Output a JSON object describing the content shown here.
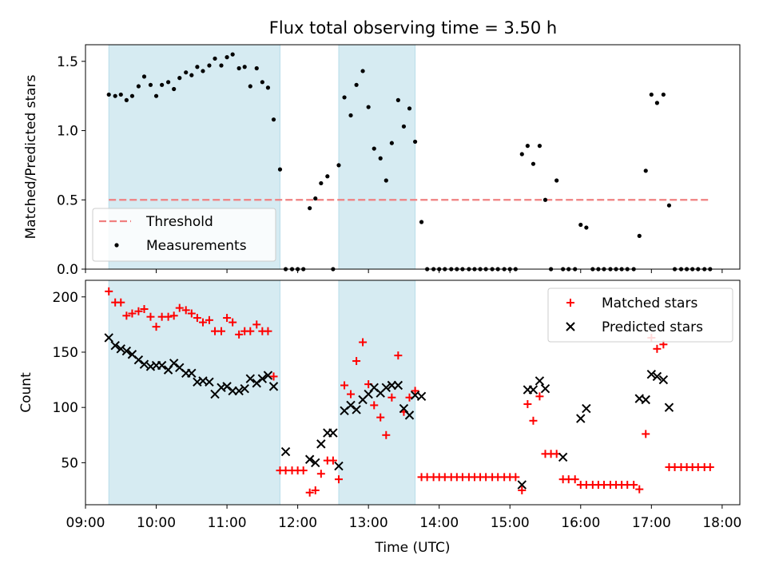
{
  "figure": {
    "title": "Flux total observing time = 3.50 h"
  },
  "chart_data": [
    {
      "type": "scatter",
      "ylabel": "Matched/Predicted stars",
      "xlim": [
        9.0,
        18.25
      ],
      "ylim": [
        0,
        1.62
      ],
      "yticks": [
        0.0,
        0.5,
        1.0,
        1.5
      ],
      "ytick_labels": [
        "0.0",
        "0.5",
        "1.0",
        "1.5"
      ],
      "xticks": [
        9,
        10,
        11,
        12,
        13,
        14,
        15,
        16,
        17,
        18
      ],
      "shaded_intervals": [
        [
          9.33,
          11.75
        ],
        [
          12.58,
          13.66
        ]
      ],
      "shade_color": "#add8e6",
      "threshold": {
        "name": "Threshold",
        "value": 0.5,
        "x_range": [
          9.33,
          17.83
        ],
        "color": "#f08080"
      },
      "legend": {
        "position": "lower-left",
        "entries": [
          "Threshold",
          "Measurements"
        ]
      },
      "series": [
        {
          "name": "Measurements",
          "color": "#000000",
          "x": [
            9.33,
            9.42,
            9.5,
            9.58,
            9.66,
            9.75,
            9.83,
            9.92,
            10.0,
            10.08,
            10.17,
            10.25,
            10.33,
            10.42,
            10.5,
            10.58,
            10.66,
            10.75,
            10.83,
            10.92,
            11.0,
            11.08,
            11.17,
            11.25,
            11.33,
            11.42,
            11.5,
            11.58,
            11.66,
            11.75,
            11.83,
            11.92,
            12.0,
            12.08,
            12.17,
            12.25,
            12.33,
            12.42,
            12.5,
            12.58,
            12.66,
            12.75,
            12.83,
            12.92,
            13.0,
            13.08,
            13.17,
            13.25,
            13.33,
            13.42,
            13.5,
            13.58,
            13.66,
            13.75,
            13.83,
            13.92,
            14.0,
            14.08,
            14.17,
            14.25,
            14.33,
            14.42,
            14.5,
            14.58,
            14.66,
            14.75,
            14.83,
            14.92,
            15.0,
            15.08,
            15.17,
            15.25,
            15.33,
            15.42,
            15.5,
            15.58,
            15.66,
            15.75,
            15.83,
            15.92,
            16.0,
            16.08,
            16.17,
            16.25,
            16.33,
            16.42,
            16.5,
            16.58,
            16.66,
            16.75,
            16.83,
            16.92,
            17.0,
            17.08,
            17.17,
            17.25,
            17.33,
            17.42,
            17.5,
            17.58,
            17.66,
            17.75,
            17.83
          ],
          "y": [
            1.26,
            1.25,
            1.26,
            1.22,
            1.25,
            1.32,
            1.39,
            1.33,
            1.25,
            1.33,
            1.35,
            1.3,
            1.38,
            1.42,
            1.4,
            1.46,
            1.43,
            1.47,
            1.52,
            1.47,
            1.53,
            1.55,
            1.45,
            1.46,
            1.32,
            1.45,
            1.35,
            1.31,
            1.08,
            0.72,
            0.0,
            0.0,
            0.0,
            0.0,
            0.44,
            0.51,
            0.62,
            0.67,
            0.0,
            0.75,
            1.24,
            1.11,
            1.33,
            1.43,
            1.17,
            0.87,
            0.8,
            0.64,
            0.91,
            1.22,
            1.03,
            1.16,
            0.92,
            0.34,
            0.0,
            0.0,
            0.0,
            0.0,
            0.0,
            0.0,
            0.0,
            0.0,
            0.0,
            0.0,
            0.0,
            0.0,
            0.0,
            0.0,
            0.0,
            0.0,
            0.83,
            0.89,
            0.76,
            0.89,
            0.5,
            0.0,
            0.64,
            0.0,
            0.0,
            0.0,
            0.32,
            0.3,
            0.0,
            0.0,
            0.0,
            0.0,
            0.0,
            0.0,
            0.0,
            0.0,
            0.24,
            0.71,
            1.26,
            1.2,
            1.26,
            0.46,
            0.0,
            0.0,
            0.0,
            0.0,
            0.0,
            0.0,
            0.0
          ]
        }
      ]
    },
    {
      "type": "scatter",
      "xlabel": "Time (UTC)",
      "ylabel": "Count",
      "xlim": [
        9.0,
        18.25
      ],
      "ylim": [
        12,
        215
      ],
      "yticks": [
        50,
        100,
        150,
        200
      ],
      "ytick_labels": [
        "50",
        "100",
        "150",
        "200"
      ],
      "xticks": [
        9,
        10,
        11,
        12,
        13,
        14,
        15,
        16,
        17,
        18
      ],
      "xtick_labels": [
        "09:00",
        "10:00",
        "11:00",
        "12:00",
        "13:00",
        "14:00",
        "15:00",
        "16:00",
        "17:00",
        "18:00"
      ],
      "shaded_intervals": [
        [
          9.33,
          11.75
        ],
        [
          12.58,
          13.66
        ]
      ],
      "shade_color": "#add8e6",
      "legend": {
        "position": "top-right",
        "entries": [
          "Matched stars",
          "Predicted stars"
        ]
      },
      "series": [
        {
          "name": "Matched stars",
          "marker": "plus",
          "color": "#ff0000",
          "x": [
            9.33,
            9.42,
            9.5,
            9.58,
            9.66,
            9.75,
            9.83,
            9.92,
            10.0,
            10.08,
            10.17,
            10.25,
            10.33,
            10.42,
            10.5,
            10.58,
            10.66,
            10.75,
            10.83,
            10.92,
            11.0,
            11.08,
            11.17,
            11.25,
            11.33,
            11.42,
            11.5,
            11.58,
            11.66,
            11.75,
            11.83,
            11.92,
            12.0,
            12.08,
            12.17,
            12.25,
            12.33,
            12.42,
            12.5,
            12.58,
            12.66,
            12.75,
            12.83,
            12.92,
            13.0,
            13.08,
            13.17,
            13.25,
            13.33,
            13.42,
            13.5,
            13.58,
            13.66,
            13.75,
            13.83,
            13.92,
            14.0,
            14.08,
            14.17,
            14.25,
            14.33,
            14.42,
            14.5,
            14.58,
            14.66,
            14.75,
            14.83,
            14.92,
            15.0,
            15.08,
            15.17,
            15.25,
            15.33,
            15.42,
            15.5,
            15.58,
            15.66,
            15.75,
            15.83,
            15.92,
            16.0,
            16.08,
            16.17,
            16.25,
            16.33,
            16.42,
            16.5,
            16.58,
            16.66,
            16.75,
            16.83,
            16.92,
            17.0,
            17.08,
            17.17,
            17.25,
            17.33,
            17.42,
            17.5,
            17.58,
            17.66,
            17.75,
            17.83
          ],
          "y": [
            205,
            195,
            195,
            183,
            185,
            187,
            189,
            182,
            173,
            182,
            182,
            183,
            190,
            188,
            185,
            181,
            177,
            179,
            169,
            169,
            181,
            177,
            166,
            169,
            169,
            175,
            169,
            169,
            128,
            43,
            43,
            43,
            43,
            43,
            23,
            25,
            40,
            52,
            52,
            35,
            120,
            112,
            142,
            159,
            121,
            102,
            91,
            75,
            109,
            147,
            96,
            109,
            115,
            37,
            37,
            37,
            37,
            37,
            37,
            37,
            37,
            37,
            37,
            37,
            37,
            37,
            37,
            37,
            37,
            37,
            25,
            103,
            88,
            110,
            58,
            58,
            58,
            35,
            35,
            35,
            30,
            30,
            30,
            30,
            30,
            30,
            30,
            30,
            30,
            30,
            26,
            76,
            163,
            153,
            157,
            46,
            46,
            46,
            46,
            46,
            46,
            46,
            46
          ]
        },
        {
          "name": "Predicted stars",
          "marker": "x",
          "color": "#000000",
          "x": [
            9.33,
            9.42,
            9.5,
            9.58,
            9.66,
            9.75,
            9.83,
            9.92,
            10.0,
            10.08,
            10.17,
            10.25,
            10.33,
            10.42,
            10.5,
            10.58,
            10.66,
            10.75,
            10.83,
            10.92,
            11.0,
            11.08,
            11.17,
            11.25,
            11.33,
            11.42,
            11.5,
            11.58,
            11.66,
            11.83,
            12.17,
            12.25,
            12.33,
            12.42,
            12.5,
            12.58,
            12.66,
            12.75,
            12.83,
            12.92,
            13.0,
            13.08,
            13.17,
            13.25,
            13.33,
            13.42,
            13.5,
            13.58,
            13.66,
            13.75,
            15.17,
            15.25,
            15.33,
            15.42,
            15.5,
            15.75,
            16.0,
            16.08,
            16.83,
            16.92,
            17.0,
            17.08,
            17.17,
            17.25
          ],
          "y": [
            163,
            156,
            153,
            151,
            148,
            143,
            139,
            137,
            138,
            138,
            134,
            140,
            136,
            131,
            131,
            123,
            124,
            123,
            112,
            118,
            119,
            115,
            115,
            117,
            126,
            122,
            126,
            129,
            119,
            60,
            53,
            50,
            67,
            77,
            77,
            47,
            97,
            102,
            98,
            107,
            112,
            118,
            113,
            118,
            120,
            120,
            99,
            93,
            111,
            110,
            30,
            116,
            116,
            124,
            117,
            55,
            90,
            99,
            108,
            107,
            130,
            128,
            125,
            100
          ]
        }
      ]
    }
  ]
}
